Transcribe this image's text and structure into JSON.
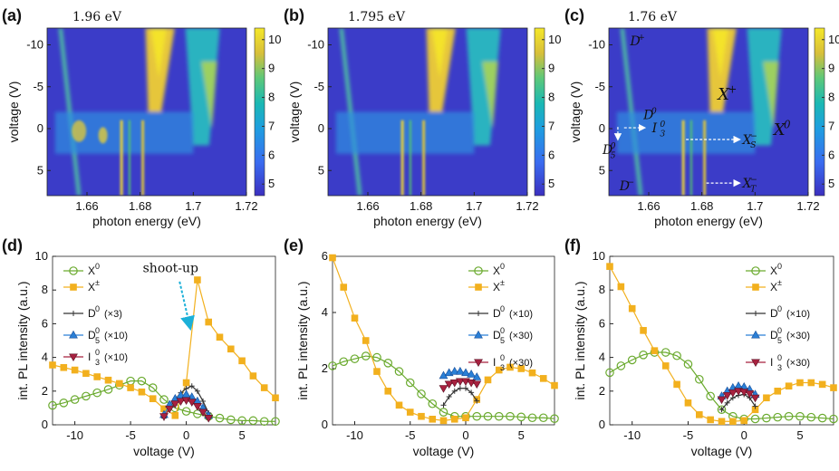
{
  "colors": {
    "X0": "#6aaa2e",
    "Xpm": "#f2b01e",
    "D0": "#333333",
    "D05": "#2a7fd6",
    "I03": "#a8213f",
    "cmap_low": "#3b2fbf",
    "cmap_high": "#f5e82a",
    "arrow": "#1cb0d8"
  },
  "chart_data": [
    {
      "panel": "(a)",
      "type": "heatmap",
      "title": "1.96 eV",
      "xlabel": "photon energy (eV)",
      "ylabel": "voltage (V)",
      "xlim": [
        1.645,
        1.72
      ],
      "ylim": [
        -12,
        8
      ],
      "xticks": [
        "1.66",
        "1.68",
        "1.7",
        "1.72"
      ],
      "yticks": [
        "-10",
        "-5",
        "0",
        "5"
      ],
      "colorbar": {
        "ticks": [
          "10",
          "9",
          "8",
          "7",
          "6",
          "5"
        ],
        "range": [
          4.6,
          10.4
        ]
      },
      "labels": []
    },
    {
      "panel": "(b)",
      "type": "heatmap",
      "title": "1.795 eV",
      "xlabel": "photon energy (eV)",
      "ylabel": "voltage (V)",
      "xlim": [
        1.645,
        1.72
      ],
      "ylim": [
        -12,
        8
      ],
      "xticks": [
        "1.66",
        "1.68",
        "1.7",
        "1.72"
      ],
      "yticks": [
        "-10",
        "-5",
        "0",
        "5"
      ],
      "colorbar": {
        "ticks": [
          "10",
          "9",
          "8",
          "7",
          "6",
          "5"
        ],
        "range": [
          4.6,
          10.4
        ]
      },
      "labels": []
    },
    {
      "panel": "(c)",
      "type": "heatmap",
      "title": "1.76 eV",
      "xlabel": "photon energy (eV)",
      "ylabel": "voltage (V)",
      "xlim": [
        1.645,
        1.72
      ],
      "ylim": [
        -12,
        8
      ],
      "xticks": [
        "1.66",
        "1.68",
        "1.7",
        "1.72"
      ],
      "yticks": [
        "-10",
        "-5",
        "0",
        "5"
      ],
      "colorbar": {
        "ticks": [
          "10",
          "9",
          "8",
          "7",
          "6",
          "5"
        ],
        "range": [
          4.6,
          10.4
        ]
      },
      "labels": [
        {
          "base": "D",
          "sup": "+",
          "sub": ""
        },
        {
          "base": "X",
          "sup": "+",
          "sub": ""
        },
        {
          "base": "D",
          "sup": "0",
          "sub": ""
        },
        {
          "base": "I",
          "sup": "0",
          "sub": "3"
        },
        {
          "base": "X",
          "sup": "0",
          "sub": ""
        },
        {
          "base": "D",
          "sup": "0",
          "sub": "5"
        },
        {
          "base": "X",
          "sup": "−",
          "sub": "S"
        },
        {
          "base": "D",
          "sup": "−",
          "sub": ""
        },
        {
          "base": "X",
          "sup": "−",
          "sub": "T"
        }
      ]
    },
    {
      "panel": "(d)",
      "type": "line",
      "xlabel": "voltage (V)",
      "ylabel": "int. PL intensity (a.u.)",
      "xlim": [
        -12,
        8
      ],
      "ylim": [
        0,
        10
      ],
      "xticks": [
        "-10",
        "-5",
        "0",
        "5"
      ],
      "yticks": [
        "0",
        "2",
        "4",
        "6",
        "8",
        "10"
      ],
      "annotation": "shoot-up",
      "series": [
        {
          "name": "X",
          "sup": "0",
          "sub": "",
          "note": "",
          "marker": "circle",
          "color_key": "X0",
          "x": [
            -12,
            -11,
            -10,
            -9,
            -8,
            -7,
            -6,
            -5,
            -4,
            -3,
            -2,
            -1,
            0,
            1,
            2,
            3,
            4,
            5,
            6,
            7,
            8
          ],
          "y": [
            1.15,
            1.3,
            1.5,
            1.7,
            1.9,
            2.1,
            2.35,
            2.6,
            2.6,
            2.2,
            1.5,
            1.0,
            0.8,
            0.65,
            0.5,
            0.4,
            0.3,
            0.25,
            0.25,
            0.2,
            0.2
          ]
        },
        {
          "name": "X",
          "sup": "±",
          "sub": "",
          "note": "",
          "marker": "square",
          "color_key": "Xpm",
          "x": [
            -12,
            -11,
            -10,
            -9,
            -8,
            -7,
            -6,
            -5,
            -4,
            -3,
            -2,
            -1,
            0,
            1,
            2,
            3,
            4,
            5,
            6,
            7,
            8
          ],
          "y": [
            3.55,
            3.4,
            3.25,
            3.05,
            2.85,
            2.65,
            2.45,
            2.2,
            1.95,
            1.55,
            0.95,
            0.55,
            2.5,
            8.6,
            6.1,
            5.2,
            4.5,
            3.8,
            2.9,
            2.2,
            1.6
          ]
        },
        {
          "name": "D",
          "sup": "0",
          "sub": "",
          "note": "(×3)",
          "marker": "plus",
          "color_key": "D0",
          "x": [
            -2,
            -1.5,
            -1,
            -0.5,
            0,
            0.5,
            1,
            1.5,
            2
          ],
          "y": [
            0.4,
            1.0,
            1.5,
            1.9,
            2.15,
            2.3,
            2.0,
            1.4,
            0.7
          ]
        },
        {
          "name": "D",
          "sup": "0",
          "sub": "5",
          "note": "(×10)",
          "marker": "triangle",
          "color_key": "D05",
          "x": [
            -2,
            -1.5,
            -1,
            -0.5,
            0,
            0.5,
            1,
            1.5,
            2
          ],
          "y": [
            0.6,
            1.2,
            1.55,
            1.75,
            1.8,
            1.65,
            1.4,
            1.0,
            0.55
          ]
        },
        {
          "name": "I",
          "sup": "0",
          "sub": "3",
          "note": "(×10)",
          "marker": "tri-down",
          "color_key": "I03",
          "x": [
            -2,
            -1.5,
            -1,
            -0.5,
            0,
            0.5,
            1,
            1.5,
            2
          ],
          "y": [
            0.5,
            0.95,
            1.25,
            1.4,
            1.45,
            1.35,
            1.1,
            0.75,
            0.4
          ]
        }
      ]
    },
    {
      "panel": "(e)",
      "type": "line",
      "xlabel": "voltage (V)",
      "ylabel": "int. PL intensity (a.u.)",
      "xlim": [
        -12,
        8
      ],
      "ylim": [
        0,
        6
      ],
      "xticks": [
        "-10",
        "-5",
        "0",
        "5"
      ],
      "yticks": [
        "0",
        "2",
        "4",
        "6"
      ],
      "series": [
        {
          "name": "X",
          "sup": "0",
          "sub": "",
          "note": "",
          "marker": "circle",
          "color_key": "X0",
          "x": [
            -12,
            -11,
            -10,
            -9,
            -8,
            -7,
            -6,
            -5,
            -4,
            -3,
            -2,
            -1,
            0,
            1,
            2,
            3,
            4,
            5,
            6,
            7,
            8
          ],
          "y": [
            2.1,
            2.25,
            2.35,
            2.45,
            2.4,
            2.2,
            1.9,
            1.5,
            1.1,
            0.75,
            0.45,
            0.3,
            0.3,
            0.3,
            0.3,
            0.3,
            0.3,
            0.28,
            0.25,
            0.25,
            0.22
          ]
        },
        {
          "name": "X",
          "sup": "±",
          "sub": "",
          "note": "",
          "marker": "square",
          "color_key": "Xpm",
          "x": [
            -12,
            -11,
            -10,
            -9,
            -8,
            -7,
            -6,
            -5,
            -4,
            -3,
            -2,
            -1,
            0,
            1,
            2,
            3,
            4,
            5,
            6,
            7,
            8
          ],
          "y": [
            5.95,
            4.9,
            3.8,
            3.0,
            1.9,
            1.2,
            0.7,
            0.45,
            0.3,
            0.2,
            0.15,
            0.2,
            0.25,
            0.9,
            1.6,
            1.95,
            2.05,
            2.0,
            1.85,
            1.65,
            1.4
          ]
        },
        {
          "name": "D",
          "sup": "0",
          "sub": "",
          "note": "(×10)",
          "marker": "plus",
          "color_key": "D0",
          "x": [
            -2,
            -1.5,
            -1,
            -0.5,
            0,
            0.5,
            1
          ],
          "y": [
            0.7,
            1.0,
            1.2,
            1.3,
            1.3,
            1.15,
            0.85
          ]
        },
        {
          "name": "D",
          "sup": "0",
          "sub": "5",
          "note": "(×30)",
          "marker": "triangle",
          "color_key": "D05",
          "x": [
            -2,
            -1.5,
            -1,
            -0.5,
            0,
            0.5,
            1
          ],
          "y": [
            1.75,
            1.85,
            1.9,
            1.9,
            1.85,
            1.8,
            1.7
          ]
        },
        {
          "name": "I",
          "sup": "0",
          "sub": "3",
          "note": "(×30)",
          "marker": "tri-down",
          "color_key": "I03",
          "x": [
            -2,
            -1.5,
            -1,
            -0.5,
            0,
            0.5,
            1
          ],
          "y": [
            1.3,
            1.45,
            1.5,
            1.55,
            1.55,
            1.5,
            1.45
          ]
        }
      ]
    },
    {
      "panel": "(f)",
      "type": "line",
      "xlabel": "voltage (V)",
      "ylabel": "int. PL intensity (a.u.)",
      "xlim": [
        -12,
        8
      ],
      "ylim": [
        0,
        10
      ],
      "xticks": [
        "-10",
        "-5",
        "0",
        "5"
      ],
      "yticks": [
        "0",
        "2",
        "4",
        "6",
        "8",
        "10"
      ],
      "series": [
        {
          "name": "X",
          "sup": "0",
          "sub": "",
          "note": "",
          "marker": "circle",
          "color_key": "X0",
          "x": [
            -12,
            -11,
            -10,
            -9,
            -8,
            -7,
            -6,
            -5,
            -4,
            -3,
            -2,
            -1,
            0,
            1,
            2,
            3,
            4,
            5,
            6,
            7,
            8
          ],
          "y": [
            3.1,
            3.5,
            3.85,
            4.15,
            4.3,
            4.3,
            4.1,
            3.6,
            2.7,
            1.7,
            0.9,
            0.5,
            0.35,
            0.35,
            0.4,
            0.45,
            0.5,
            0.5,
            0.45,
            0.4,
            0.35
          ]
        },
        {
          "name": "X",
          "sup": "±",
          "sub": "",
          "note": "",
          "marker": "square",
          "color_key": "Xpm",
          "x": [
            -12,
            -11,
            -10,
            -9,
            -8,
            -7,
            -6,
            -5,
            -4,
            -3,
            -2,
            -1,
            0,
            1,
            2,
            3,
            4,
            5,
            6,
            7,
            8
          ],
          "y": [
            9.4,
            8.2,
            6.9,
            5.6,
            4.4,
            3.5,
            2.4,
            1.3,
            0.6,
            0.3,
            0.2,
            0.2,
            0.25,
            0.9,
            1.6,
            2.0,
            2.3,
            2.5,
            2.5,
            2.4,
            2.2
          ]
        },
        {
          "name": "D",
          "sup": "0",
          "sub": "",
          "note": "(×10)",
          "marker": "plus",
          "color_key": "D0",
          "x": [
            -2,
            -1.5,
            -1,
            -0.5,
            0,
            0.5,
            1
          ],
          "y": [
            0.9,
            1.3,
            1.6,
            1.75,
            1.8,
            1.6,
            1.1
          ]
        },
        {
          "name": "D",
          "sup": "0",
          "sub": "5",
          "note": "(×30)",
          "marker": "triangle",
          "color_key": "D05",
          "x": [
            -2,
            -1.5,
            -1,
            -0.5,
            0,
            0.5,
            1
          ],
          "y": [
            1.7,
            2.0,
            2.2,
            2.3,
            2.25,
            2.1,
            1.8
          ]
        },
        {
          "name": "I",
          "sup": "0",
          "sub": "3",
          "note": "(×30)",
          "marker": "tri-down",
          "color_key": "I03",
          "x": [
            -2,
            -1.5,
            -1,
            -0.5,
            0,
            0.5,
            1
          ],
          "y": [
            1.5,
            1.75,
            1.9,
            2.0,
            1.95,
            1.85,
            1.6
          ]
        }
      ]
    }
  ]
}
